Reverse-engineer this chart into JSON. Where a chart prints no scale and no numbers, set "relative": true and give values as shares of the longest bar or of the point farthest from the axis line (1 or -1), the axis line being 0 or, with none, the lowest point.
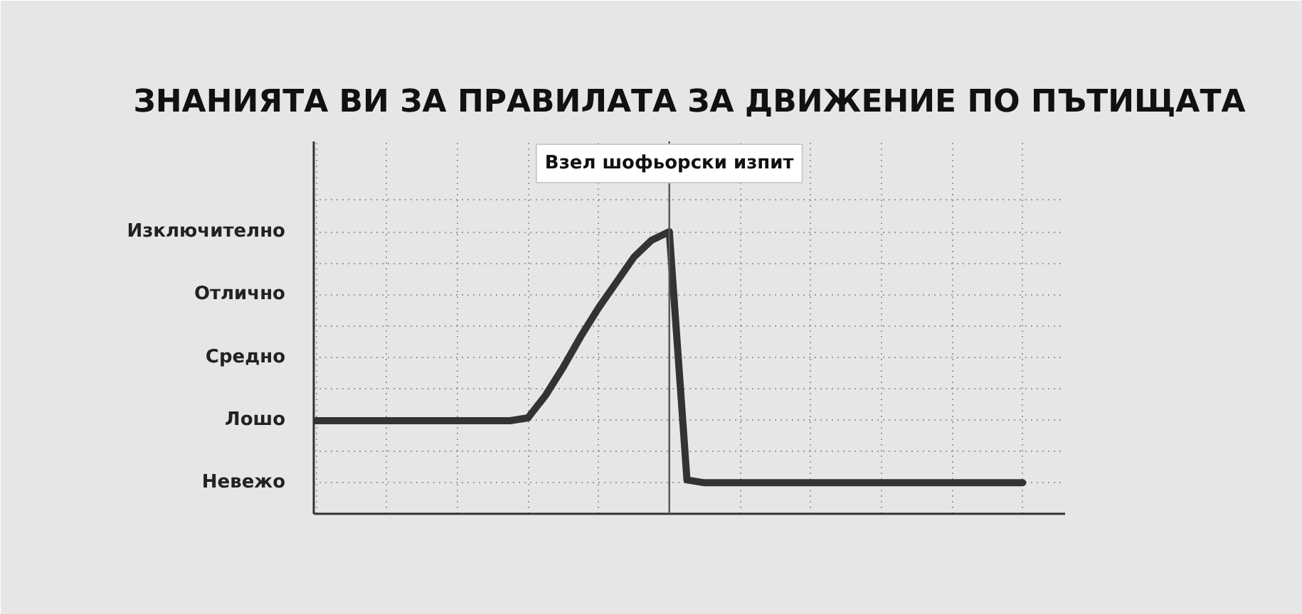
{
  "chart_data": {
    "type": "line",
    "title": "ЗНАНИЯТА ВИ ЗА ПРАВИЛАТА ЗА ДВИЖЕНИЕ ПО ПЪТИЩАТА",
    "categories": [
      null,
      null,
      null,
      null,
      null,
      null,
      null,
      null,
      null,
      null,
      null,
      null,
      null,
      null,
      null,
      null,
      null,
      null,
      null,
      null,
      null,
      null,
      null,
      null,
      null,
      null,
      null,
      null,
      null,
      null,
      null,
      null,
      null,
      null,
      null,
      null,
      null,
      null,
      null,
      null,
      null
    ],
    "values": [
      0.33,
      0.33,
      0.33,
      0.33,
      0.33,
      0.33,
      0.33,
      0.33,
      0.33,
      0.33,
      0.33,
      0.33,
      0.34,
      0.42,
      0.52,
      0.63,
      0.73,
      0.82,
      0.91,
      0.97,
      1,
      0.12,
      0.11,
      0.11,
      0.11,
      0.11,
      0.11,
      0.11,
      0.11,
      0.11,
      0.11,
      0.11,
      0.11,
      0.11,
      0.11,
      0.11,
      0.11,
      0.11,
      0.11,
      0.11,
      0.11
    ],
    "color": "#333333",
    "relative": true,
    "grid": true,
    "annotations": [
      "Невежо",
      "Лошо",
      "Средно",
      "Отлично",
      "Изключително",
      "Взел шофьорски изпит"
    ]
  }
}
